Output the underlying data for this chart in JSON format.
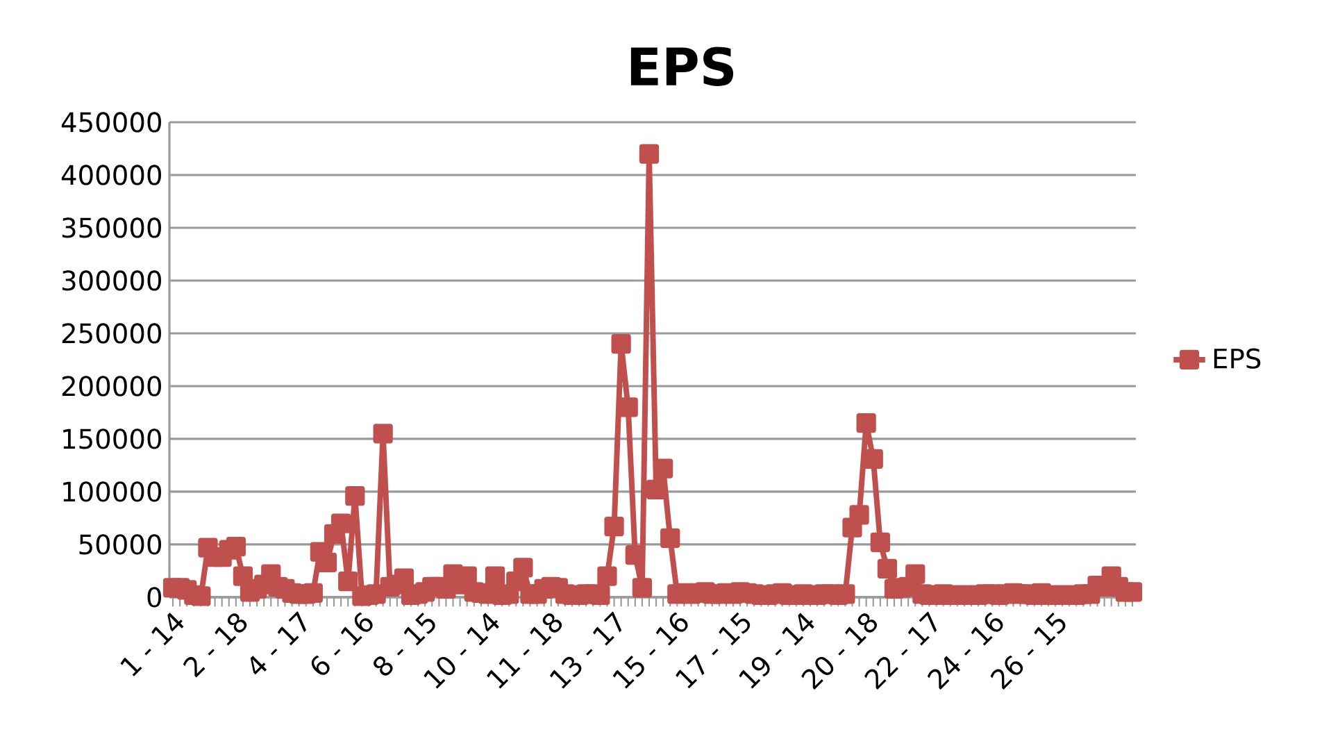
{
  "chart_data": {
    "type": "line",
    "title": "EPS",
    "categories": [
      "1 - 14",
      null,
      null,
      null,
      null,
      null,
      null,
      null,
      null,
      "2 - 18",
      null,
      null,
      null,
      null,
      null,
      null,
      null,
      null,
      "4 - 17",
      null,
      null,
      null,
      null,
      null,
      null,
      null,
      null,
      "6 - 16",
      null,
      null,
      null,
      null,
      null,
      null,
      null,
      null,
      "8 - 15",
      null,
      null,
      null,
      null,
      null,
      null,
      null,
      null,
      "10 - 14",
      null,
      null,
      null,
      null,
      null,
      null,
      null,
      null,
      "11 - 18",
      null,
      null,
      null,
      null,
      null,
      null,
      null,
      null,
      "13 - 17",
      null,
      null,
      null,
      null,
      null,
      null,
      null,
      null,
      "15 - 16",
      null,
      null,
      null,
      null,
      null,
      null,
      null,
      null,
      "17 - 15",
      null,
      null,
      null,
      null,
      null,
      null,
      null,
      null,
      "19 - 14",
      null,
      null,
      null,
      null,
      null,
      null,
      null,
      null,
      "20 - 18",
      null,
      null,
      null,
      null,
      null,
      null,
      null,
      null,
      "22 - 17",
      null,
      null,
      null,
      null,
      null,
      null,
      null,
      null,
      "24 - 16",
      null,
      null,
      null,
      null,
      null,
      null,
      null,
      null,
      "26 - 15",
      null,
      null,
      null,
      null,
      null,
      null,
      null,
      null,
      null,
      null,
      null
    ],
    "series": [
      {
        "name": "EPS",
        "color": "#c0504d",
        "values": [
          9000,
          9000,
          7000,
          2000,
          1000,
          47000,
          38000,
          38000,
          45000,
          48000,
          20000,
          5000,
          8000,
          12000,
          22000,
          10000,
          8000,
          4000,
          3000,
          3000,
          4000,
          43000,
          33000,
          60000,
          70000,
          15000,
          96000,
          1000,
          2000,
          3000,
          155000,
          10000,
          12000,
          18000,
          2000,
          3000,
          5000,
          10000,
          10000,
          8000,
          22000,
          12000,
          20000,
          5000,
          4000,
          3000,
          20000,
          2000,
          3000,
          15000,
          28000,
          3000,
          3000,
          8000,
          10000,
          9000,
          3000,
          2000,
          2000,
          3000,
          3000,
          2000,
          20000,
          67000,
          240000,
          180000,
          40000,
          9000,
          420000,
          102000,
          122000,
          56000,
          3000,
          4000,
          3000,
          4000,
          5000,
          3000,
          3000,
          4000,
          3000,
          5000,
          4000,
          3000,
          2000,
          2000,
          3000,
          4000,
          2000,
          2000,
          3000,
          2000,
          2000,
          3000,
          3000,
          2000,
          3000,
          66000,
          78000,
          165000,
          131000,
          52000,
          27000,
          8000,
          9000,
          10000,
          22000,
          3000,
          2000,
          2000,
          3000,
          2000,
          2000,
          2000,
          2000,
          2000,
          3000,
          3000,
          2000,
          3000,
          4000,
          3000,
          3000,
          2000,
          4000,
          2000,
          2000,
          2000,
          2000,
          2000,
          3000,
          3000,
          11000,
          10000,
          20000,
          10000,
          5000,
          5000
        ]
      }
    ],
    "ylim": [
      0,
      450000
    ],
    "yticks": [
      0,
      50000,
      100000,
      150000,
      200000,
      250000,
      300000,
      350000,
      400000,
      450000
    ],
    "grid": "y",
    "legend": "right",
    "marker": "square",
    "line_style": "solid"
  }
}
